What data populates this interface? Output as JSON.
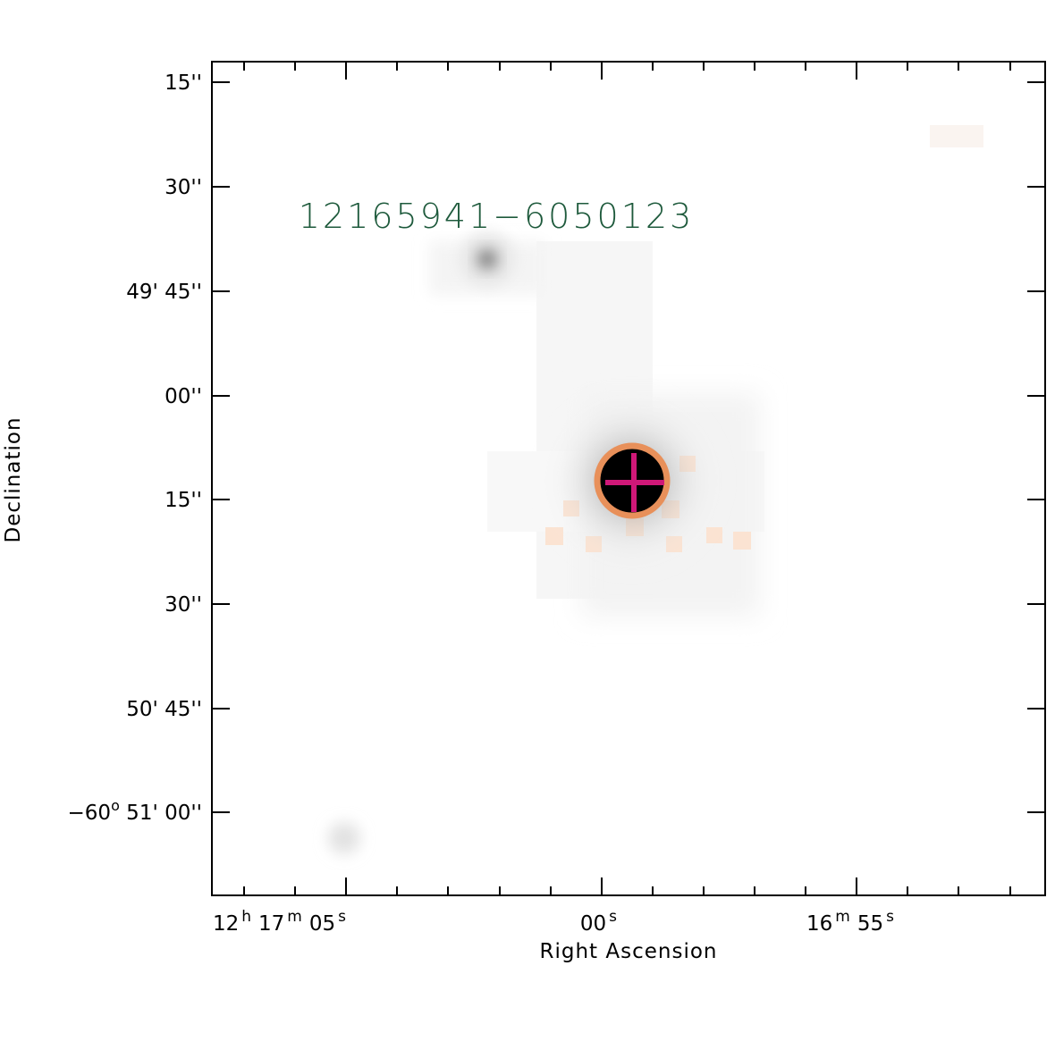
{
  "source_label": "12165941−6050123",
  "axes": {
    "xlabel": "Right Ascension",
    "ylabel": "Declination",
    "x_ticks": [
      {
        "parts": [
          [
            "12",
            "h"
          ],
          [
            "17",
            "m"
          ],
          [
            "05",
            "s"
          ]
        ]
      },
      {
        "parts": [
          [
            "00",
            "s"
          ]
        ]
      },
      {
        "parts": [
          [
            "16",
            "m"
          ],
          [
            "55",
            "s"
          ]
        ]
      }
    ],
    "y_ticks": [
      {
        "text": "15''"
      },
      {
        "text": "30''"
      },
      {
        "text": "49' 45''"
      },
      {
        "text": "00''"
      },
      {
        "text": "15''"
      },
      {
        "text": "30''"
      },
      {
        "text": "50' 45''"
      },
      {
        "text": "−60",
        "sup": "o",
        "rest": " 51' 00''"
      }
    ]
  },
  "colors": {
    "label": "#1e5a3c",
    "ring": "#e8905a",
    "cross": "#d01878",
    "frame": "#000000"
  }
}
